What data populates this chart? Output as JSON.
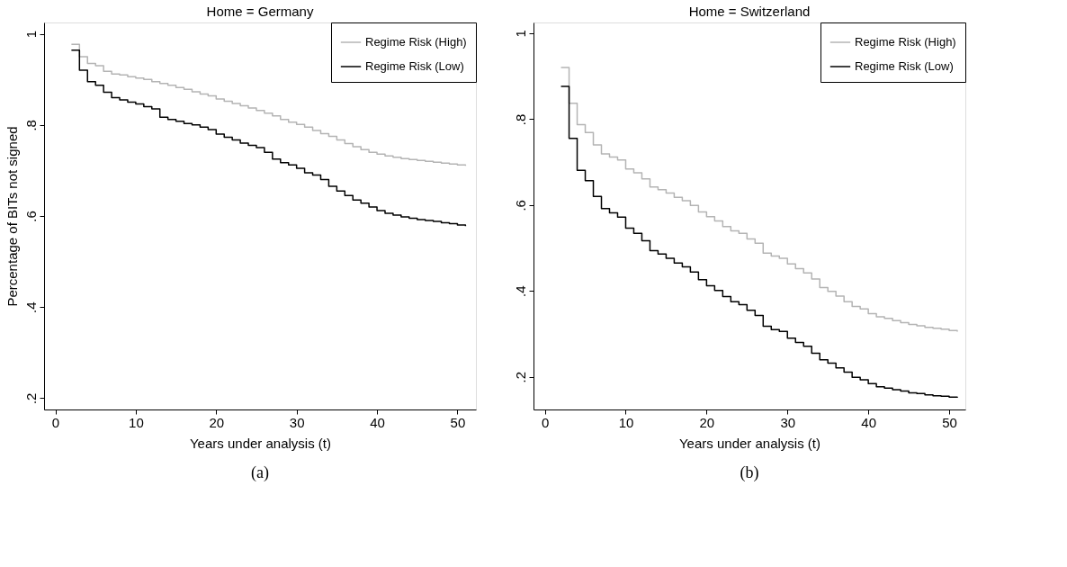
{
  "chart_data": [
    {
      "type": "step",
      "title": "Home = Germany",
      "xlabel": "Years under analysis (t)",
      "ylabel": "Percentage of BITs not signed",
      "x": [
        2,
        3,
        4,
        5,
        6,
        7,
        8,
        9,
        10,
        11,
        12,
        13,
        14,
        15,
        16,
        17,
        18,
        19,
        20,
        21,
        22,
        23,
        24,
        25,
        26,
        27,
        28,
        29,
        30,
        31,
        32,
        33,
        34,
        35,
        36,
        37,
        38,
        39,
        40,
        41,
        42,
        43,
        44,
        45,
        46,
        47,
        48,
        49,
        50,
        51
      ],
      "series": [
        {
          "name": "Regime Risk (High)",
          "color": "#b4b4b4",
          "values": [
            0.977,
            0.95,
            0.935,
            0.93,
            0.918,
            0.912,
            0.91,
            0.906,
            0.903,
            0.9,
            0.895,
            0.891,
            0.887,
            0.882,
            0.878,
            0.873,
            0.868,
            0.864,
            0.857,
            0.852,
            0.847,
            0.842,
            0.837,
            0.832,
            0.826,
            0.82,
            0.812,
            0.806,
            0.801,
            0.795,
            0.788,
            0.781,
            0.775,
            0.767,
            0.759,
            0.752,
            0.746,
            0.74,
            0.736,
            0.732,
            0.729,
            0.726,
            0.724,
            0.722,
            0.72,
            0.718,
            0.716,
            0.714,
            0.712,
            0.71
          ]
        },
        {
          "name": "Regime Risk (Low)",
          "color": "#000000",
          "values": [
            0.964,
            0.92,
            0.895,
            0.887,
            0.872,
            0.86,
            0.855,
            0.85,
            0.846,
            0.84,
            0.835,
            0.817,
            0.812,
            0.808,
            0.803,
            0.8,
            0.795,
            0.79,
            0.78,
            0.773,
            0.767,
            0.76,
            0.755,
            0.75,
            0.74,
            0.725,
            0.717,
            0.712,
            0.705,
            0.695,
            0.69,
            0.68,
            0.665,
            0.655,
            0.645,
            0.635,
            0.628,
            0.62,
            0.612,
            0.606,
            0.602,
            0.598,
            0.595,
            0.592,
            0.59,
            0.588,
            0.585,
            0.583,
            0.58,
            0.578
          ]
        }
      ],
      "xlim": [
        -1.4,
        52.3
      ],
      "xticks": [
        0,
        10,
        20,
        30,
        40,
        50
      ],
      "ylim": [
        0.175,
        1.025
      ],
      "yticks": [
        {
          "value": 0.2,
          "label": ".2"
        },
        {
          "value": 0.4,
          "label": ".4"
        },
        {
          "value": 0.6,
          "label": ".6"
        },
        {
          "value": 0.8,
          "label": ".8"
        },
        1
      ],
      "grid": false,
      "legend": "top right",
      "annotations": [
        "(a)"
      ]
    },
    {
      "type": "step",
      "title": "Home = Switzerland",
      "xlabel": "Years under analysis (t)",
      "x": [
        2,
        3,
        4,
        5,
        6,
        7,
        8,
        9,
        10,
        11,
        12,
        13,
        14,
        15,
        16,
        17,
        18,
        19,
        20,
        21,
        22,
        23,
        24,
        25,
        26,
        27,
        28,
        29,
        30,
        31,
        32,
        33,
        34,
        35,
        36,
        37,
        38,
        39,
        40,
        41,
        42,
        43,
        44,
        45,
        46,
        47,
        48,
        49,
        50,
        51
      ],
      "series": [
        {
          "name": "Regime Risk (High)",
          "color": "#b4b4b4",
          "values": [
            0.92,
            0.837,
            0.787,
            0.769,
            0.74,
            0.719,
            0.712,
            0.705,
            0.684,
            0.675,
            0.661,
            0.642,
            0.636,
            0.628,
            0.618,
            0.61,
            0.599,
            0.584,
            0.573,
            0.563,
            0.55,
            0.54,
            0.534,
            0.521,
            0.511,
            0.488,
            0.481,
            0.476,
            0.463,
            0.452,
            0.442,
            0.428,
            0.408,
            0.399,
            0.388,
            0.375,
            0.364,
            0.358,
            0.347,
            0.34,
            0.336,
            0.331,
            0.326,
            0.322,
            0.319,
            0.315,
            0.313,
            0.311,
            0.308,
            0.305
          ]
        },
        {
          "name": "Regime Risk (Low)",
          "color": "#000000",
          "values": [
            0.876,
            0.755,
            0.681,
            0.657,
            0.62,
            0.592,
            0.582,
            0.572,
            0.546,
            0.534,
            0.517,
            0.494,
            0.486,
            0.476,
            0.465,
            0.456,
            0.444,
            0.426,
            0.412,
            0.401,
            0.387,
            0.375,
            0.368,
            0.355,
            0.343,
            0.318,
            0.31,
            0.306,
            0.29,
            0.28,
            0.271,
            0.255,
            0.24,
            0.232,
            0.221,
            0.211,
            0.199,
            0.193,
            0.184,
            0.177,
            0.174,
            0.17,
            0.167,
            0.163,
            0.161,
            0.158,
            0.156,
            0.155,
            0.153,
            0.151
          ]
        }
      ],
      "xlim": [
        -1.4,
        52
      ],
      "xticks": [
        0,
        10,
        20,
        30,
        40,
        50
      ],
      "ylim": [
        0.124,
        1.025
      ],
      "yticks": [
        {
          "value": 0.2,
          "label": ".2"
        },
        {
          "value": 0.4,
          "label": ".4"
        },
        {
          "value": 0.6,
          "label": ".6"
        },
        {
          "value": 0.8,
          "label": ".8"
        },
        1
      ],
      "grid": false,
      "legend": "top right",
      "annotations": [
        "(b)"
      ]
    }
  ]
}
